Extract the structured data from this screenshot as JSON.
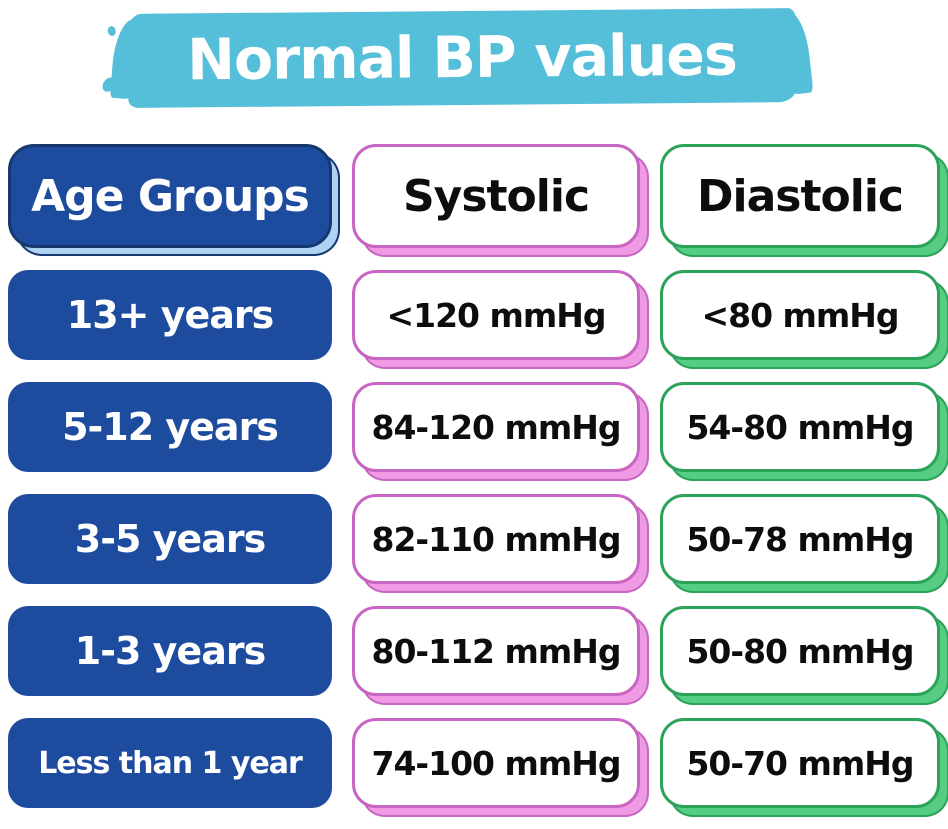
{
  "title": "Normal BP values",
  "colors": {
    "banner": "#55bed9",
    "blue": "#1d4c9f",
    "blue_border": "#17386f",
    "blue_shadow": "#aed2f1",
    "pink_border": "#c765c2",
    "pink_shadow": "#f09ae5",
    "green_border": "#2ca25a",
    "green_shadow": "#55cd82",
    "text_dark": "#0d0d0d",
    "text_light": "#ffffff"
  },
  "table": {
    "headers": {
      "age": "Age Groups",
      "systolic": "Systolic",
      "diastolic": "Diastolic"
    },
    "rows": [
      {
        "age": "13+ years",
        "systolic": "<120 mmHg",
        "diastolic": "<80 mmHg"
      },
      {
        "age": "5-12 years",
        "systolic": "84-120 mmHg",
        "diastolic": "54-80 mmHg"
      },
      {
        "age": "3-5 years",
        "systolic": "82-110 mmHg",
        "diastolic": "50-78 mmHg"
      },
      {
        "age": "1-3 years",
        "systolic": "80-112 mmHg",
        "diastolic": "50-80 mmHg"
      },
      {
        "age": "Less than 1 year",
        "systolic": "74-100 mmHg",
        "diastolic": "50-70 mmHg"
      }
    ]
  },
  "chart_data": {
    "type": "table",
    "title": "Normal BP values",
    "columns": [
      "Age Groups",
      "Systolic",
      "Diastolic"
    ],
    "rows": [
      [
        "13+ years",
        "<120 mmHg",
        "<80 mmHg"
      ],
      [
        "5-12 years",
        "84-120 mmHg",
        "54-80 mmHg"
      ],
      [
        "3-5 years",
        "82-110 mmHg",
        "50-78 mmHg"
      ],
      [
        "1-3 years",
        "80-112 mmHg",
        "50-80 mmHg"
      ],
      [
        "Less than 1 year",
        "74-100 mmHg",
        "50-70 mmHg"
      ]
    ]
  }
}
